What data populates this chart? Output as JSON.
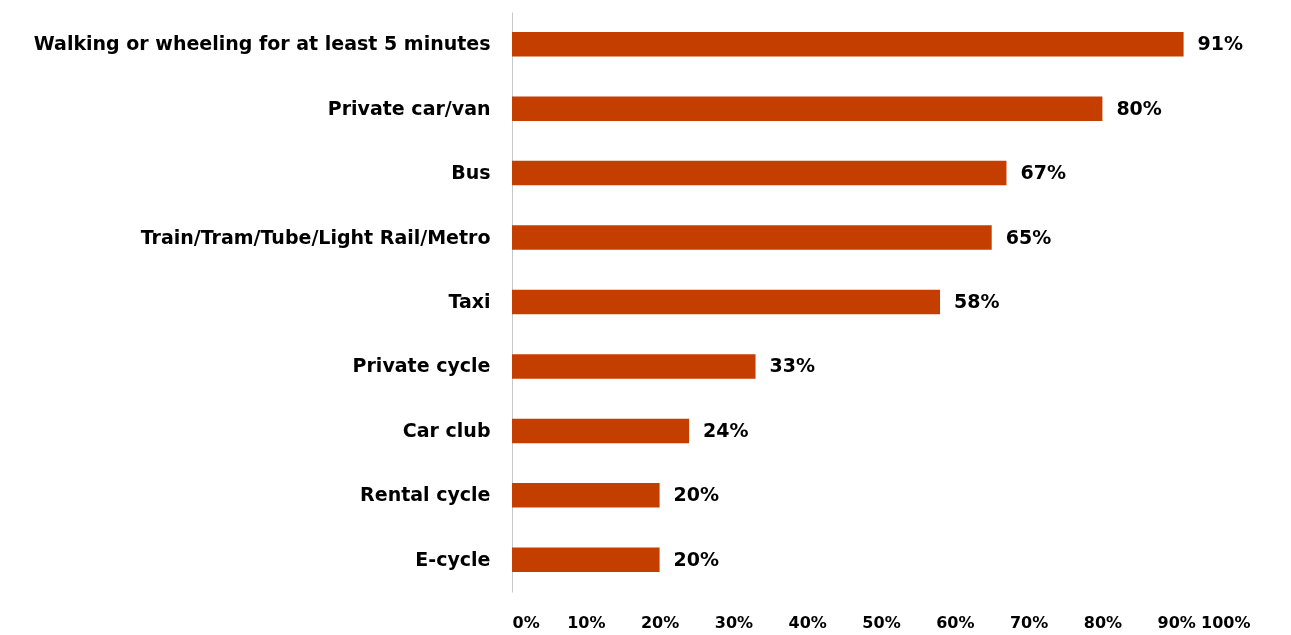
{
  "chart_data": {
    "type": "bar",
    "orientation": "horizontal",
    "categories": [
      "Walking or wheeling for at least 5 minutes",
      "Private car/van",
      "Bus",
      "Train/Tram/Tube/Light Rail/Metro",
      "Taxi",
      "Private cycle",
      "Car club",
      "Rental cycle",
      "E-cycle"
    ],
    "values": [
      91,
      80,
      67,
      65,
      58,
      33,
      24,
      20,
      20
    ],
    "value_labels": [
      "91%",
      "80%",
      "67%",
      "65%",
      "58%",
      "33%",
      "24%",
      "20%",
      "20%"
    ],
    "color": "#c43e00",
    "xlim": [
      0,
      100
    ],
    "xticks": [
      {
        "value": 0,
        "label": "0%"
      },
      {
        "value": 10,
        "label": "10%"
      },
      {
        "value": 20,
        "label": "20%"
      },
      {
        "value": 30,
        "label": "30%"
      },
      {
        "value": 40,
        "label": "40%"
      },
      {
        "value": 50,
        "label": "50%"
      },
      {
        "value": 60,
        "label": "60%"
      },
      {
        "value": 70,
        "label": "70%"
      },
      {
        "value": 80,
        "label": "80%"
      },
      {
        "value": 90,
        "label": "90%"
      },
      {
        "value": 100,
        "label": "100%"
      }
    ],
    "grid": false
  }
}
